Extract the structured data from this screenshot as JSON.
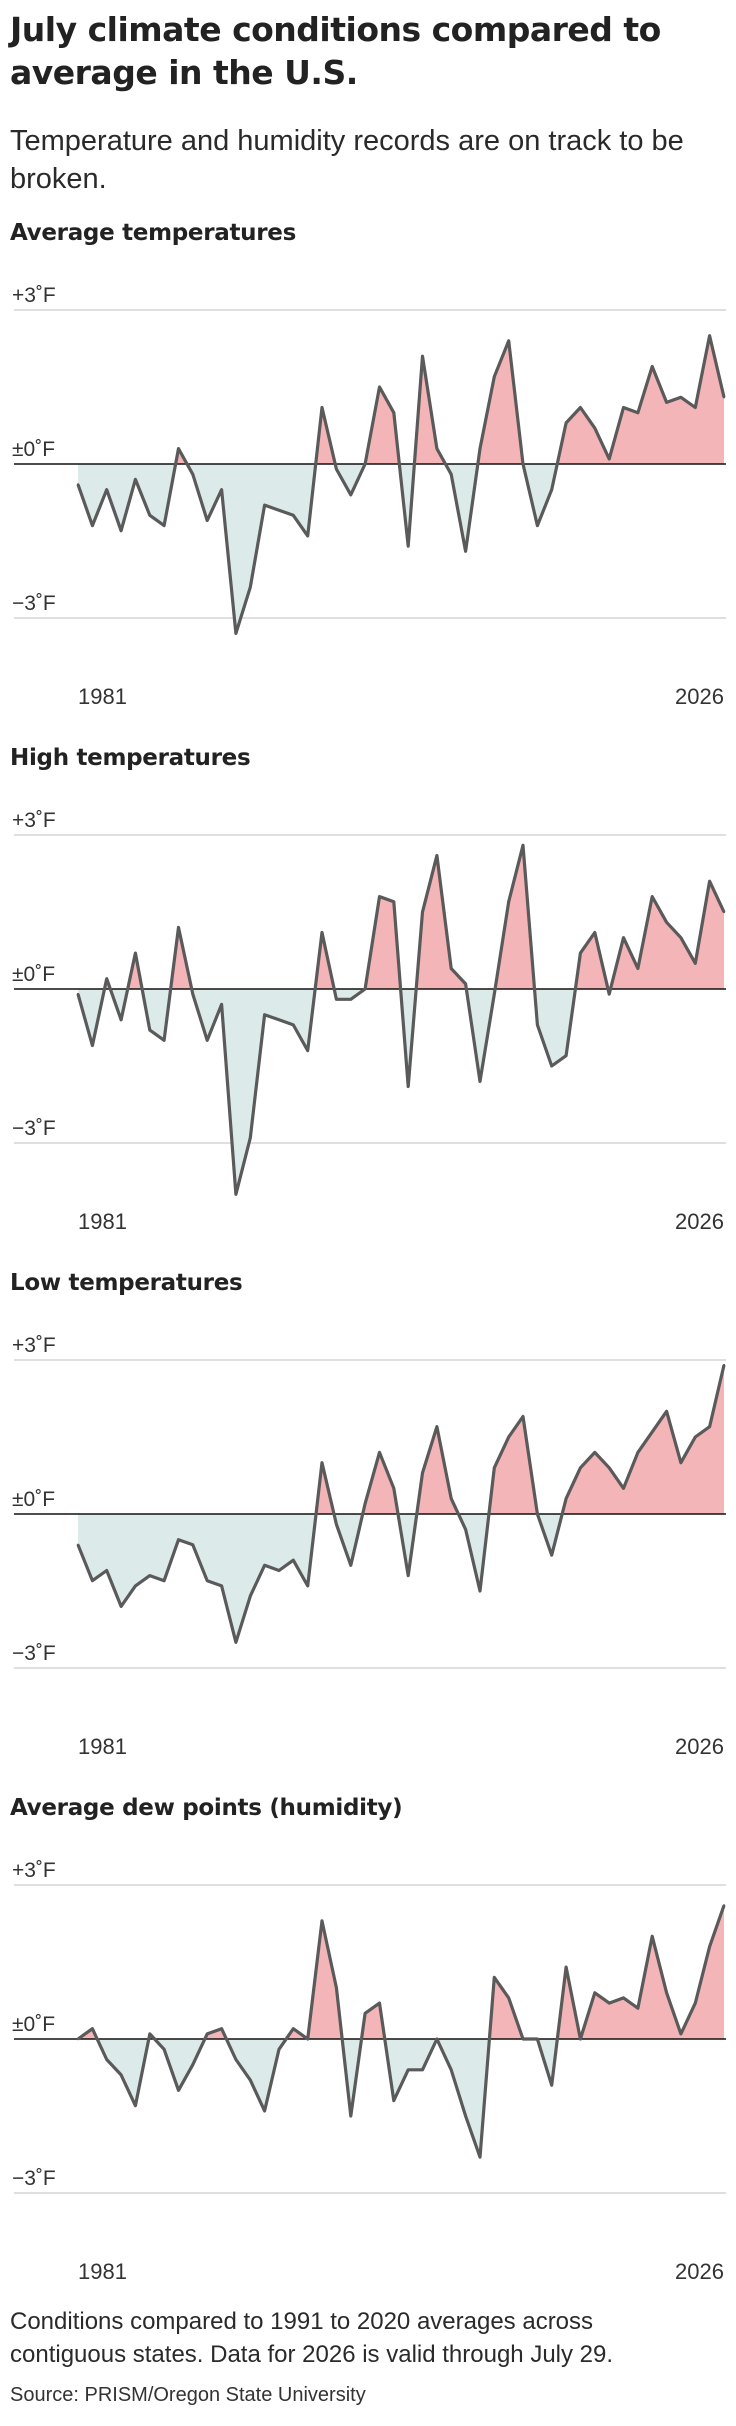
{
  "title": "July climate conditions compared to average in the U.S.",
  "subtitle": "Temperature and humidity records are on track to be broken.",
  "footnote": "Conditions compared to 1991 to 2020 averages across contiguous states. Data for 2026 is valid through July 29.",
  "source": "Source: PRISM/Oregon State University",
  "colors": {
    "line": "#5a5a5a",
    "above": "#f3b5b8",
    "below": "#dcebea",
    "zero": "#111111",
    "grid": "#cccccc"
  },
  "chart_data": [
    {
      "type": "area",
      "title": "Average temperatures",
      "tick_labels": [
        "+3˚F",
        "±0˚F",
        "−3˚F"
      ],
      "x_start_label": "1981",
      "x_end_label": "2026",
      "ylim": [
        -3,
        3
      ],
      "x": [
        1981,
        1982,
        1983,
        1984,
        1985,
        1986,
        1987,
        1988,
        1989,
        1990,
        1991,
        1992,
        1993,
        1994,
        1995,
        1996,
        1997,
        1998,
        1999,
        2000,
        2001,
        2002,
        2003,
        2004,
        2005,
        2006,
        2007,
        2008,
        2009,
        2010,
        2011,
        2012,
        2013,
        2014,
        2015,
        2016,
        2017,
        2018,
        2019,
        2020,
        2021,
        2022,
        2023,
        2024,
        2025,
        2026
      ],
      "values": [
        -0.4,
        -1.2,
        -0.5,
        -1.3,
        -0.3,
        -1.0,
        -1.2,
        0.3,
        -0.2,
        -1.1,
        -0.5,
        -3.3,
        -2.4,
        -0.8,
        -0.9,
        -1.0,
        -1.4,
        1.1,
        -0.1,
        -0.6,
        0.0,
        1.5,
        1.0,
        -1.6,
        2.1,
        0.3,
        -0.2,
        -1.7,
        0.3,
        1.7,
        2.4,
        0.0,
        -1.2,
        -0.5,
        0.8,
        1.1,
        0.7,
        0.1,
        1.1,
        1.0,
        1.9,
        1.2,
        1.3,
        1.1,
        2.5,
        1.3
      ]
    },
    {
      "type": "area",
      "title": "High temperatures",
      "tick_labels": [
        "+3˚F",
        "±0˚F",
        "−3˚F"
      ],
      "x_start_label": "1981",
      "x_end_label": "2026",
      "ylim": [
        -3,
        3
      ],
      "x": [
        1981,
        1982,
        1983,
        1984,
        1985,
        1986,
        1987,
        1988,
        1989,
        1990,
        1991,
        1992,
        1993,
        1994,
        1995,
        1996,
        1997,
        1998,
        1999,
        2000,
        2001,
        2002,
        2003,
        2004,
        2005,
        2006,
        2007,
        2008,
        2009,
        2010,
        2011,
        2012,
        2013,
        2014,
        2015,
        2016,
        2017,
        2018,
        2019,
        2020,
        2021,
        2022,
        2023,
        2024,
        2025,
        2026
      ],
      "values": [
        -0.1,
        -1.1,
        0.2,
        -0.6,
        0.7,
        -0.8,
        -1.0,
        1.2,
        -0.1,
        -1.0,
        -0.3,
        -4.0,
        -2.9,
        -0.5,
        -0.6,
        -0.7,
        -1.2,
        1.1,
        -0.2,
        -0.2,
        0.0,
        1.8,
        1.7,
        -1.9,
        1.5,
        2.6,
        0.4,
        0.1,
        -1.8,
        -0.1,
        1.7,
        2.8,
        -0.7,
        -1.5,
        -1.3,
        0.7,
        1.1,
        -0.1,
        1.0,
        0.4,
        1.8,
        1.3,
        1.0,
        0.5,
        2.1,
        1.5
      ]
    },
    {
      "type": "area",
      "title": "Low temperatures",
      "tick_labels": [
        "+3˚F",
        "±0˚F",
        "−3˚F"
      ],
      "x_start_label": "1981",
      "x_end_label": "2026",
      "ylim": [
        -3,
        3
      ],
      "x": [
        1981,
        1982,
        1983,
        1984,
        1985,
        1986,
        1987,
        1988,
        1989,
        1990,
        1991,
        1992,
        1993,
        1994,
        1995,
        1996,
        1997,
        1998,
        1999,
        2000,
        2001,
        2002,
        2003,
        2004,
        2005,
        2006,
        2007,
        2008,
        2009,
        2010,
        2011,
        2012,
        2013,
        2014,
        2015,
        2016,
        2017,
        2018,
        2019,
        2020,
        2021,
        2022,
        2023,
        2024,
        2025,
        2026
      ],
      "values": [
        -0.6,
        -1.3,
        -1.1,
        -1.8,
        -1.4,
        -1.2,
        -1.3,
        -0.5,
        -0.6,
        -1.3,
        -1.4,
        -2.5,
        -1.6,
        -1.0,
        -1.1,
        -0.9,
        -1.4,
        1.0,
        -0.2,
        -1.0,
        0.2,
        1.2,
        0.5,
        -1.2,
        0.8,
        1.7,
        0.3,
        -0.3,
        -1.5,
        0.9,
        1.5,
        1.9,
        0.0,
        -0.8,
        0.3,
        0.9,
        1.2,
        0.9,
        0.5,
        1.2,
        1.6,
        2.0,
        1.0,
        1.5,
        1.7,
        2.9
      ]
    },
    {
      "type": "area",
      "title": "Average dew points (humidity)",
      "tick_labels": [
        "+3˚F",
        "±0˚F",
        "−3˚F"
      ],
      "x_start_label": "1981",
      "x_end_label": "2026",
      "ylim": [
        -3,
        3
      ],
      "x": [
        1981,
        1982,
        1983,
        1984,
        1985,
        1986,
        1987,
        1988,
        1989,
        1990,
        1991,
        1992,
        1993,
        1994,
        1995,
        1996,
        1997,
        1998,
        1999,
        2000,
        2001,
        2002,
        2003,
        2004,
        2005,
        2006,
        2007,
        2008,
        2009,
        2010,
        2011,
        2012,
        2013,
        2014,
        2015,
        2016,
        2017,
        2018,
        2019,
        2020,
        2021,
        2022,
        2023,
        2024,
        2025,
        2026
      ],
      "values": [
        0.0,
        0.2,
        -0.4,
        -0.7,
        -1.3,
        0.1,
        -0.2,
        -1.0,
        -0.5,
        0.1,
        0.2,
        -0.4,
        -0.8,
        -1.4,
        -0.2,
        0.2,
        0.0,
        2.3,
        1.0,
        -1.5,
        0.5,
        0.7,
        -1.2,
        -0.6,
        -0.6,
        0.0,
        -0.6,
        -1.5,
        -2.3,
        1.2,
        0.8,
        0.0,
        0.0,
        -0.9,
        1.4,
        0.0,
        0.9,
        0.7,
        0.8,
        0.6,
        2.0,
        0.9,
        0.1,
        0.7,
        1.8,
        2.6
      ]
    }
  ]
}
